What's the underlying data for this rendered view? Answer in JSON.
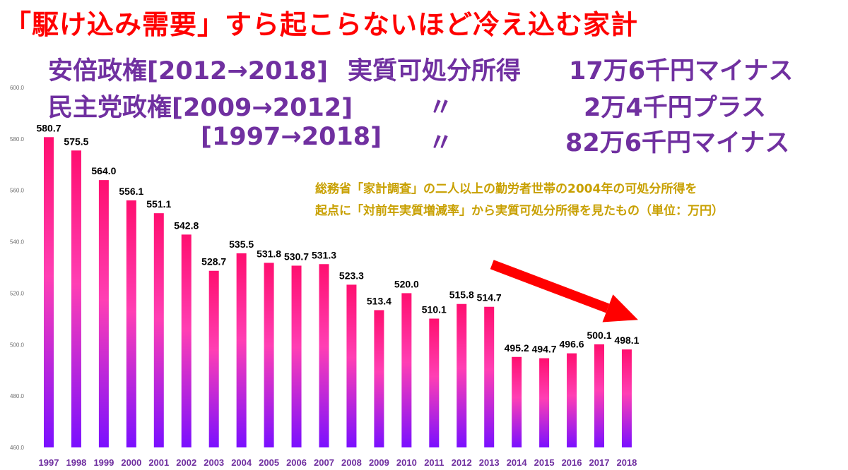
{
  "headline": "「駆け込み需要」すら起こらないほど冷え込む家計",
  "lines": [
    {
      "label": "安倍政権[2012→2018]",
      "mark": "実質可処分所得",
      "value": "17万6千円マイナス"
    },
    {
      "label": "民主党政権[2009→2012]",
      "mark": "〃",
      "value": "2万4千円プラス"
    },
    {
      "label": "[1997→2018]",
      "mark": "〃",
      "value": "82万6千円マイナス"
    }
  ],
  "note": {
    "line1": "総務省「家計調査」の二人以上の勤労者世帯の2004年の可処分所得を",
    "line2": "起点に「対前年実質増減率」から実質可処分所得を見たもの（単位：万円）"
  },
  "colors": {
    "title": "#ff0000",
    "subtitle": "#7030a0",
    "note": "#c8a000",
    "bar_top": "#ff0f6f",
    "bar_mid": "#ff3fb4",
    "bar_bottom": "#7a10ff",
    "arrow": "#ff0000",
    "axis_text": "#7030a0"
  },
  "chart_data": {
    "type": "bar",
    "title": "「駆け込み需要」すら起こらないほど冷え込む家計",
    "xlabel": "",
    "ylabel": "",
    "categories": [
      "1997",
      "1998",
      "1999",
      "2000",
      "2001",
      "2002",
      "2003",
      "2004",
      "2005",
      "2006",
      "2007",
      "2008",
      "2009",
      "2010",
      "2011",
      "2012",
      "2013",
      "2014",
      "2015",
      "2016",
      "2017",
      "2018"
    ],
    "values": [
      580.7,
      575.5,
      564.0,
      556.1,
      551.1,
      542.8,
      528.7,
      535.5,
      531.8,
      530.7,
      531.3,
      523.3,
      513.4,
      520.0,
      510.1,
      515.8,
      514.7,
      495.2,
      494.7,
      496.6,
      500.1,
      498.1
    ],
    "value_labels": [
      "580.7",
      "575.5",
      "564.0",
      "556.1",
      "551.1",
      "542.8",
      "528.7",
      "535.5",
      "531.8",
      "530.7",
      "531.3",
      "523.3",
      "513.4",
      "520.0",
      "510.1",
      "515.8",
      "514.7",
      "495.2",
      "494.7",
      "496.6",
      "500.1",
      "498.1"
    ],
    "ylim": [
      460,
      600
    ],
    "yticks": [
      "460.0",
      "480.0",
      "500.0",
      "520.0",
      "540.0",
      "560.0",
      "580.0",
      "600.0"
    ],
    "grid": false,
    "annotations": [
      "trend arrow from 2013 toward 2018"
    ]
  }
}
